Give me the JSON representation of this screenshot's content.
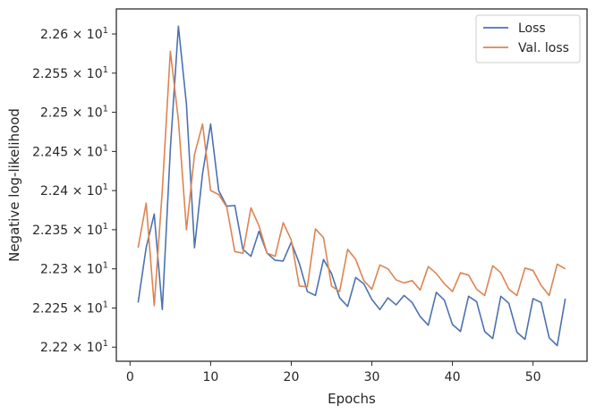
{
  "chart_data": {
    "type": "line",
    "xlabel": "Epochs",
    "ylabel": "Negative log-likelihood",
    "xlim": [
      -1.7,
      56.7
    ],
    "ylim": [
      22.182,
      22.632
    ],
    "x_ticks": [
      0,
      10,
      20,
      30,
      40,
      50
    ],
    "y_ticks": [
      22.2,
      22.25,
      22.3,
      22.35,
      22.4,
      22.45,
      22.5,
      22.55,
      22.6
    ],
    "y_tick_labels": [
      {
        "mantissa": "2.22",
        "base": "10",
        "exp": "1"
      },
      {
        "mantissa": "2.225",
        "base": "10",
        "exp": "1"
      },
      {
        "mantissa": "2.23",
        "base": "10",
        "exp": "1"
      },
      {
        "mantissa": "2.235",
        "base": "10",
        "exp": "1"
      },
      {
        "mantissa": "2.24",
        "base": "10",
        "exp": "1"
      },
      {
        "mantissa": "2.245",
        "base": "10",
        "exp": "1"
      },
      {
        "mantissa": "2.25",
        "base": "10",
        "exp": "1"
      },
      {
        "mantissa": "2.255",
        "base": "10",
        "exp": "1"
      },
      {
        "mantissa": "2.26",
        "base": "10",
        "exp": "1"
      }
    ],
    "legend_position": "top-right",
    "grid": false,
    "x": [
      1,
      2,
      3,
      4,
      5,
      6,
      7,
      8,
      9,
      10,
      11,
      12,
      13,
      14,
      15,
      16,
      17,
      18,
      19,
      20,
      21,
      22,
      23,
      24,
      25,
      26,
      27,
      28,
      29,
      30,
      31,
      32,
      33,
      34,
      35,
      36,
      37,
      38,
      39,
      40,
      41,
      42,
      43,
      44,
      45,
      46,
      47,
      48,
      49,
      50,
      51,
      52,
      53,
      54
    ],
    "series": [
      {
        "name": "Loss",
        "color": "#4c72b0",
        "values": [
          22.257,
          22.327,
          22.37,
          22.248,
          22.453,
          22.61,
          22.51,
          22.327,
          22.422,
          22.485,
          22.4,
          22.38,
          22.381,
          22.325,
          22.316,
          22.348,
          22.32,
          22.311,
          22.31,
          22.334,
          22.307,
          22.271,
          22.266,
          22.312,
          22.294,
          22.263,
          22.252,
          22.289,
          22.281,
          22.261,
          22.248,
          22.263,
          22.254,
          22.266,
          22.257,
          22.239,
          22.228,
          22.27,
          22.26,
          22.229,
          22.22,
          22.265,
          22.258,
          22.22,
          22.211,
          22.265,
          22.256,
          22.219,
          22.21,
          22.262,
          22.257,
          22.212,
          22.202,
          22.262
        ]
      },
      {
        "name": "Val. loss",
        "color": "#dd8452",
        "values": [
          22.327,
          22.384,
          22.253,
          22.4,
          22.578,
          22.49,
          22.35,
          22.446,
          22.485,
          22.4,
          22.395,
          22.379,
          22.322,
          22.32,
          22.378,
          22.355,
          22.32,
          22.316,
          22.359,
          22.337,
          22.278,
          22.277,
          22.351,
          22.34,
          22.278,
          22.271,
          22.325,
          22.312,
          22.285,
          22.274,
          22.305,
          22.3,
          22.286,
          22.282,
          22.285,
          22.273,
          22.303,
          22.294,
          22.281,
          22.271,
          22.295,
          22.292,
          22.274,
          22.266,
          22.304,
          22.295,
          22.274,
          22.266,
          22.301,
          22.298,
          22.279,
          22.266,
          22.306,
          22.3
        ]
      }
    ]
  }
}
